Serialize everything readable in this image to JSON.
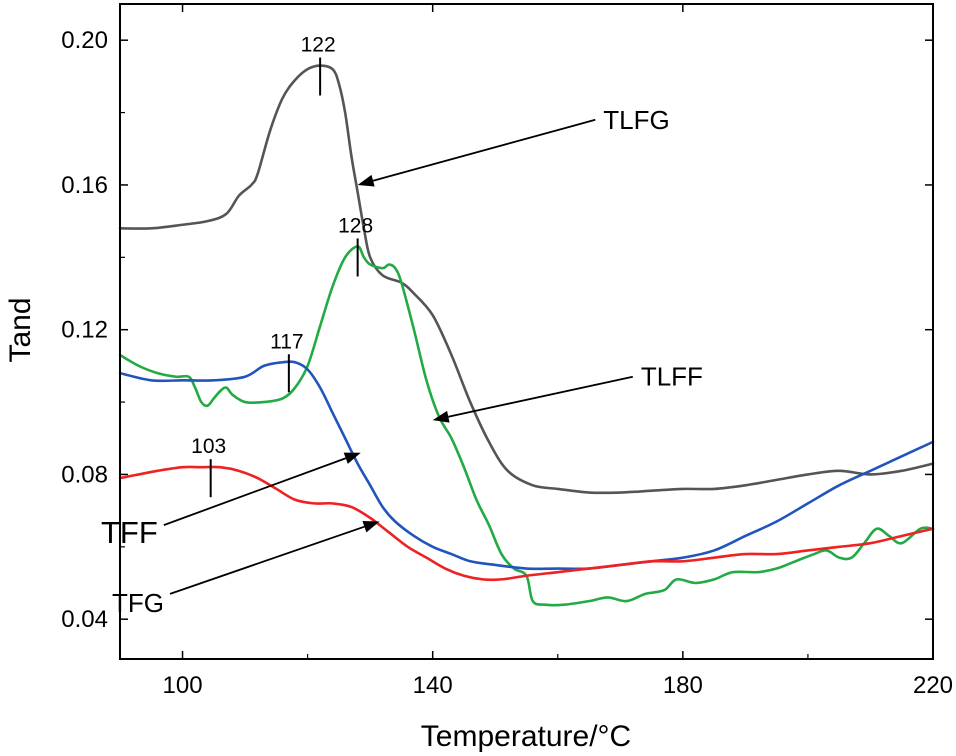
{
  "chart_data": {
    "type": "line",
    "title": "",
    "xlabel": "Temperature/°C",
    "ylabel": "Tand",
    "xlim": [
      90,
      220
    ],
    "ylim": [
      0.029,
      0.21
    ],
    "grid": false,
    "x_ticks": [
      100,
      140,
      180,
      220
    ],
    "x_tick_labels": [
      "100",
      "140",
      "180",
      "220"
    ],
    "y_ticks": [
      0.04,
      0.08,
      0.12,
      0.16,
      0.2
    ],
    "y_tick_labels": [
      "0.04",
      "0.08",
      "0.12",
      "0.16",
      "0.20"
    ],
    "series": [
      {
        "name": "TLFG",
        "color": "#555555",
        "points": [
          [
            90,
            0.148
          ],
          [
            95,
            0.148
          ],
          [
            100,
            0.149
          ],
          [
            104,
            0.15
          ],
          [
            107,
            0.152
          ],
          [
            109,
            0.157
          ],
          [
            111,
            0.16
          ],
          [
            112,
            0.163
          ],
          [
            114,
            0.175
          ],
          [
            116,
            0.184
          ],
          [
            118,
            0.189
          ],
          [
            120,
            0.192
          ],
          [
            122,
            0.193
          ],
          [
            124,
            0.192
          ],
          [
            125,
            0.188
          ],
          [
            126,
            0.18
          ],
          [
            127,
            0.168
          ],
          [
            128,
            0.158
          ],
          [
            129,
            0.148
          ],
          [
            130,
            0.14
          ],
          [
            132,
            0.135
          ],
          [
            135,
            0.133
          ],
          [
            137,
            0.13
          ],
          [
            140,
            0.124
          ],
          [
            143,
            0.113
          ],
          [
            146,
            0.1
          ],
          [
            149,
            0.089
          ],
          [
            152,
            0.081
          ],
          [
            156,
            0.077
          ],
          [
            160,
            0.076
          ],
          [
            165,
            0.075
          ],
          [
            170,
            0.075
          ],
          [
            175,
            0.0755
          ],
          [
            180,
            0.076
          ],
          [
            185,
            0.076
          ],
          [
            190,
            0.077
          ],
          [
            195,
            0.0785
          ],
          [
            200,
            0.08
          ],
          [
            205,
            0.081
          ],
          [
            210,
            0.08
          ],
          [
            215,
            0.081
          ],
          [
            220,
            0.083
          ]
        ]
      },
      {
        "name": "TLFF",
        "color": "#22aa44",
        "points": [
          [
            90,
            0.113
          ],
          [
            93,
            0.11
          ],
          [
            96,
            0.108
          ],
          [
            99,
            0.107
          ],
          [
            101,
            0.107
          ],
          [
            102,
            0.104
          ],
          [
            103,
            0.1
          ],
          [
            104,
            0.099
          ],
          [
            105,
            0.101
          ],
          [
            106,
            0.103
          ],
          [
            107,
            0.104
          ],
          [
            108,
            0.102
          ],
          [
            110,
            0.1
          ],
          [
            113,
            0.1
          ],
          [
            116,
            0.101
          ],
          [
            118,
            0.104
          ],
          [
            120,
            0.11
          ],
          [
            122,
            0.121
          ],
          [
            124,
            0.132
          ],
          [
            126,
            0.14
          ],
          [
            128,
            0.143
          ],
          [
            129,
            0.14
          ],
          [
            130,
            0.138
          ],
          [
            132,
            0.137
          ],
          [
            133,
            0.138
          ],
          [
            134,
            0.137
          ],
          [
            135,
            0.133
          ],
          [
            137,
            0.12
          ],
          [
            139,
            0.106
          ],
          [
            141,
            0.096
          ],
          [
            143,
            0.09
          ],
          [
            145,
            0.082
          ],
          [
            147,
            0.073
          ],
          [
            149,
            0.066
          ],
          [
            151,
            0.058
          ],
          [
            153,
            0.054
          ],
          [
            155,
            0.052
          ],
          [
            156,
            0.045
          ],
          [
            158,
            0.044
          ],
          [
            161,
            0.044
          ],
          [
            165,
            0.045
          ],
          [
            168,
            0.046
          ],
          [
            171,
            0.045
          ],
          [
            174,
            0.047
          ],
          [
            177,
            0.048
          ],
          [
            179,
            0.051
          ],
          [
            182,
            0.05
          ],
          [
            185,
            0.051
          ],
          [
            188,
            0.053
          ],
          [
            192,
            0.053
          ],
          [
            195,
            0.054
          ],
          [
            198,
            0.056
          ],
          [
            201,
            0.058
          ],
          [
            203,
            0.059
          ],
          [
            205,
            0.057
          ],
          [
            207,
            0.057
          ],
          [
            209,
            0.061
          ],
          [
            211,
            0.065
          ],
          [
            213,
            0.063
          ],
          [
            215,
            0.061
          ],
          [
            218,
            0.065
          ],
          [
            220,
            0.065
          ]
        ]
      },
      {
        "name": "TFF",
        "color": "#2255bb",
        "points": [
          [
            90,
            0.108
          ],
          [
            95,
            0.106
          ],
          [
            100,
            0.106
          ],
          [
            105,
            0.106
          ],
          [
            110,
            0.107
          ],
          [
            113,
            0.11
          ],
          [
            116,
            0.111
          ],
          [
            118,
            0.111
          ],
          [
            120,
            0.109
          ],
          [
            122,
            0.104
          ],
          [
            124,
            0.097
          ],
          [
            126,
            0.09
          ],
          [
            128,
            0.083
          ],
          [
            130,
            0.077
          ],
          [
            132,
            0.071
          ],
          [
            134,
            0.067
          ],
          [
            137,
            0.063
          ],
          [
            140,
            0.06
          ],
          [
            143,
            0.058
          ],
          [
            146,
            0.056
          ],
          [
            150,
            0.055
          ],
          [
            155,
            0.054
          ],
          [
            160,
            0.054
          ],
          [
            165,
            0.054
          ],
          [
            170,
            0.055
          ],
          [
            175,
            0.056
          ],
          [
            180,
            0.057
          ],
          [
            185,
            0.059
          ],
          [
            190,
            0.063
          ],
          [
            195,
            0.067
          ],
          [
            200,
            0.072
          ],
          [
            205,
            0.077
          ],
          [
            210,
            0.081
          ],
          [
            215,
            0.085
          ],
          [
            220,
            0.089
          ]
        ]
      },
      {
        "name": "TFG",
        "color": "#ee2222",
        "points": [
          [
            90,
            0.079
          ],
          [
            93,
            0.08
          ],
          [
            96,
            0.081
          ],
          [
            100,
            0.082
          ],
          [
            103,
            0.082
          ],
          [
            106,
            0.082
          ],
          [
            109,
            0.081
          ],
          [
            112,
            0.079
          ],
          [
            115,
            0.076
          ],
          [
            118,
            0.073
          ],
          [
            121,
            0.072
          ],
          [
            124,
            0.072
          ],
          [
            127,
            0.071
          ],
          [
            130,
            0.068
          ],
          [
            133,
            0.064
          ],
          [
            136,
            0.06
          ],
          [
            139,
            0.057
          ],
          [
            142,
            0.054
          ],
          [
            145,
            0.052
          ],
          [
            148,
            0.051
          ],
          [
            151,
            0.051
          ],
          [
            155,
            0.052
          ],
          [
            160,
            0.053
          ],
          [
            165,
            0.054
          ],
          [
            170,
            0.055
          ],
          [
            175,
            0.056
          ],
          [
            180,
            0.056
          ],
          [
            185,
            0.057
          ],
          [
            190,
            0.058
          ],
          [
            195,
            0.058
          ],
          [
            200,
            0.059
          ],
          [
            205,
            0.06
          ],
          [
            210,
            0.061
          ],
          [
            215,
            0.063
          ],
          [
            220,
            0.065
          ]
        ]
      }
    ],
    "peaks": [
      {
        "label": "122",
        "x": 122,
        "y": 0.193
      },
      {
        "label": "128",
        "x": 128,
        "y": 0.143
      },
      {
        "label": "117",
        "x": 117,
        "y": 0.111
      },
      {
        "label": "103",
        "x": 104.5,
        "y": 0.082
      }
    ],
    "callouts": [
      {
        "label": "TLFG",
        "target": [
          128,
          0.16
        ],
        "text_at": [
          166,
          0.178
        ],
        "emphasis": false
      },
      {
        "label": "TLFF",
        "target": [
          140,
          0.095
        ],
        "text_at": [
          172,
          0.107
        ],
        "emphasis": false
      },
      {
        "label": "TFF",
        "target": [
          128.5,
          0.086
        ],
        "text_at": [
          97,
          0.066
        ],
        "emphasis": true
      },
      {
        "label": "TFG",
        "target": [
          131.5,
          0.067
        ],
        "text_at": [
          98,
          0.047
        ],
        "emphasis": false
      }
    ]
  }
}
